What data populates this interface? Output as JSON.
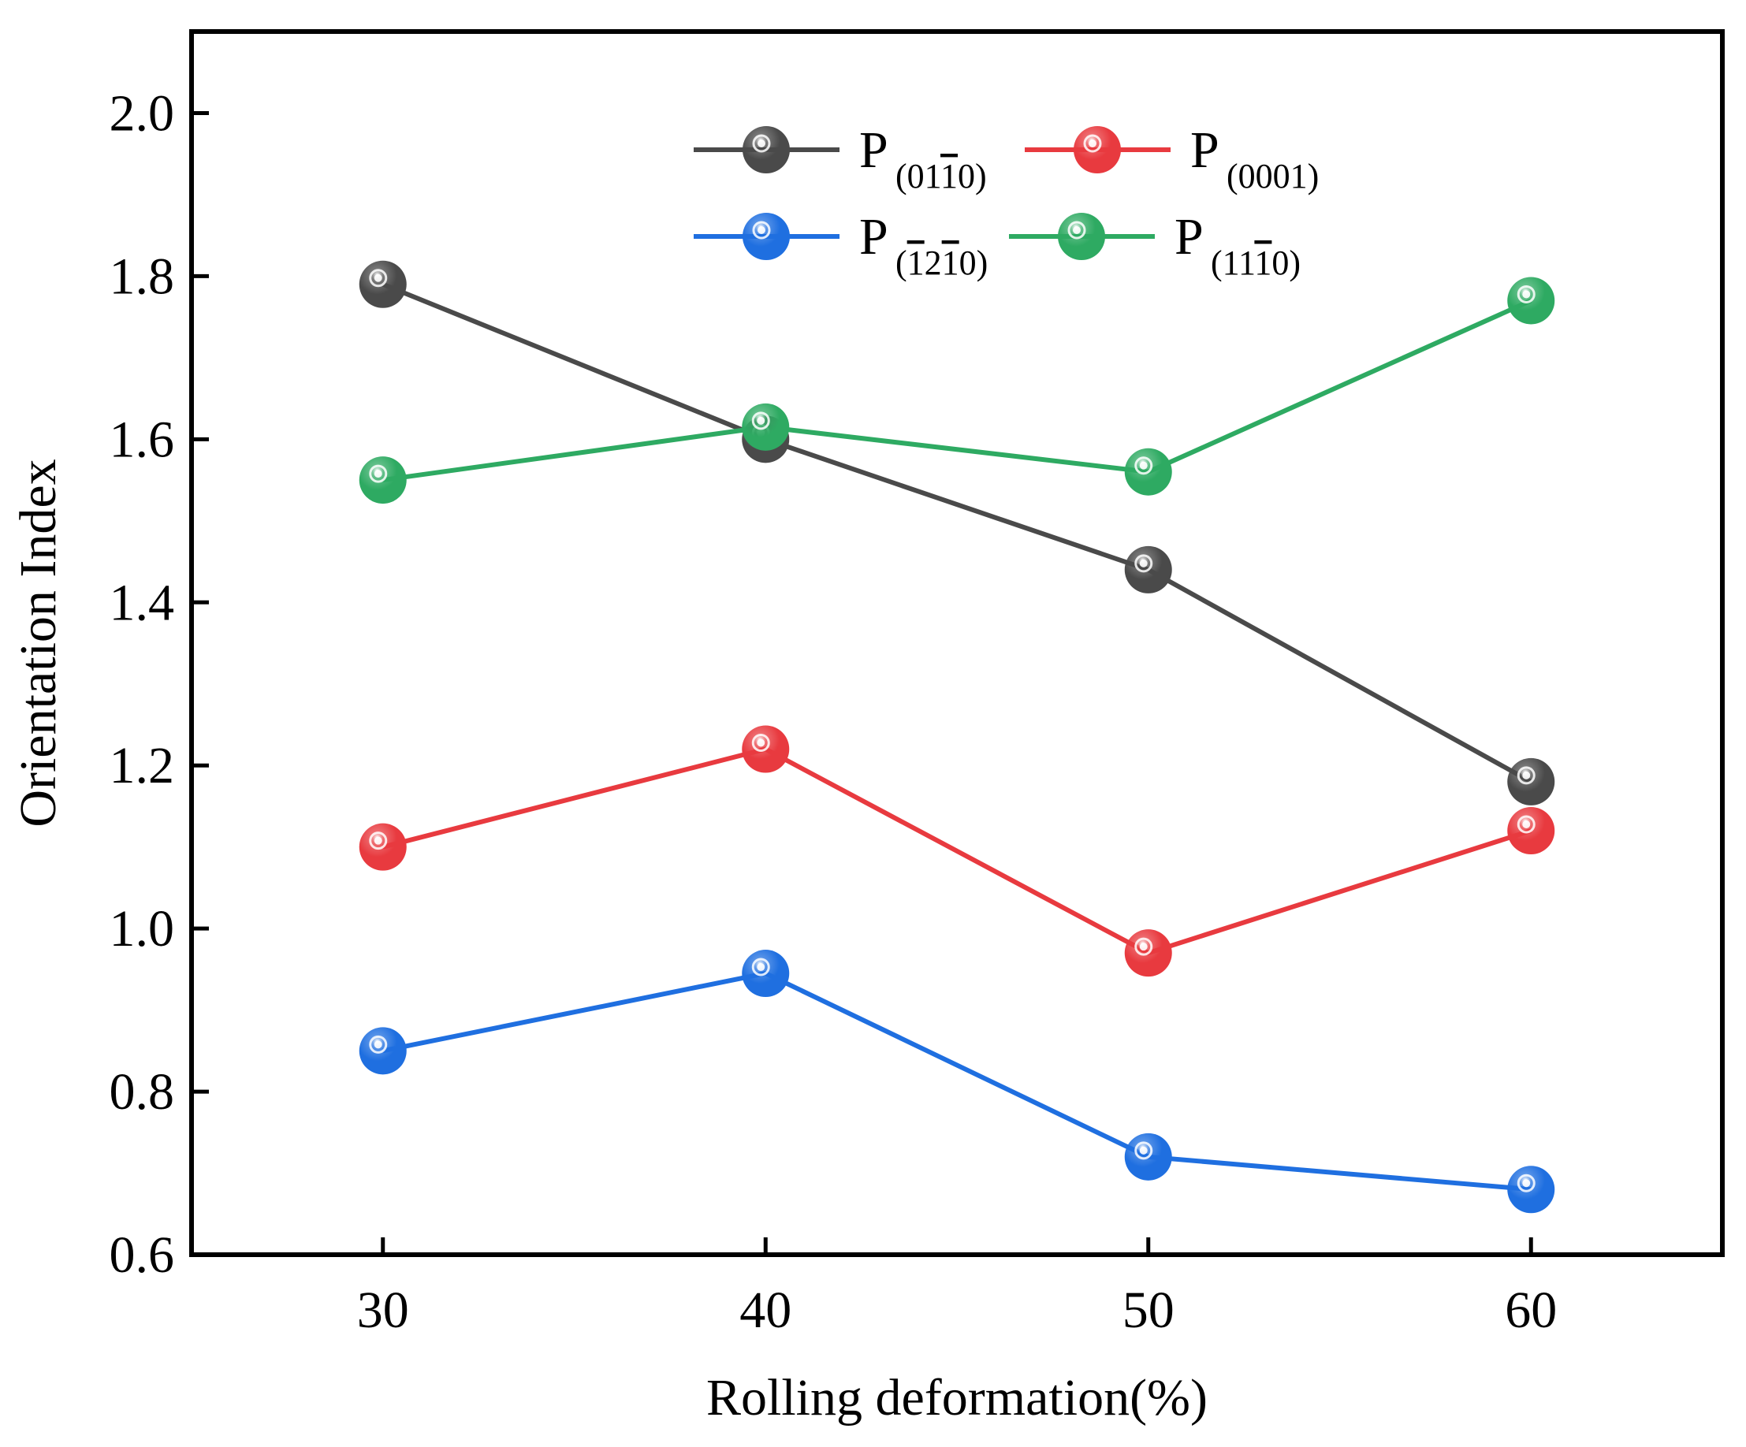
{
  "chart_data": {
    "type": "line",
    "title": "",
    "xlabel": "Rolling deformation(%)",
    "ylabel": "Orientation Index",
    "x": [
      30,
      40,
      50,
      60
    ],
    "x_ticks": [
      "30",
      "40",
      "50",
      "60"
    ],
    "xlim": [
      25,
      65
    ],
    "ylim": [
      0.6,
      2.1
    ],
    "y_ticks": [
      "0.6",
      "0.8",
      "1.0",
      "1.2",
      "1.4",
      "1.6",
      "1.8",
      "2.0"
    ],
    "grid": false,
    "legend_position": "top-center",
    "series": [
      {
        "id": "s0110",
        "prefix": "P",
        "sub": "(01",
        "sub_bar": "1",
        "sub_post": "0)",
        "sub_bar2": "",
        "name": "P(01-10)",
        "color": "#4a4a4a",
        "values": [
          1.79,
          1.6,
          1.44,
          1.18
        ]
      },
      {
        "id": "s0001",
        "prefix": "P",
        "sub": "(0001)",
        "sub_bar": "",
        "sub_post": "",
        "sub_bar2": "",
        "name": "P(0001)",
        "color": "#e83a3f",
        "values": [
          1.1,
          1.22,
          0.97,
          1.12
        ]
      },
      {
        "id": "s1210",
        "prefix": "P",
        "sub": "(",
        "sub_bar": "1",
        "sub_post": "2",
        "sub_bar2": "1",
        "sub_end": "0)",
        "name": "P(-12-10)",
        "color": "#1f6fe0",
        "values": [
          0.85,
          0.945,
          0.72,
          0.68
        ]
      },
      {
        "id": "s1110",
        "prefix": "P",
        "sub": "(11",
        "sub_bar": "1",
        "sub_post": "0)",
        "sub_bar2": "",
        "name": "P(11-10)",
        "color": "#2eaa62",
        "values": [
          1.55,
          1.615,
          1.56,
          1.77
        ]
      }
    ]
  }
}
